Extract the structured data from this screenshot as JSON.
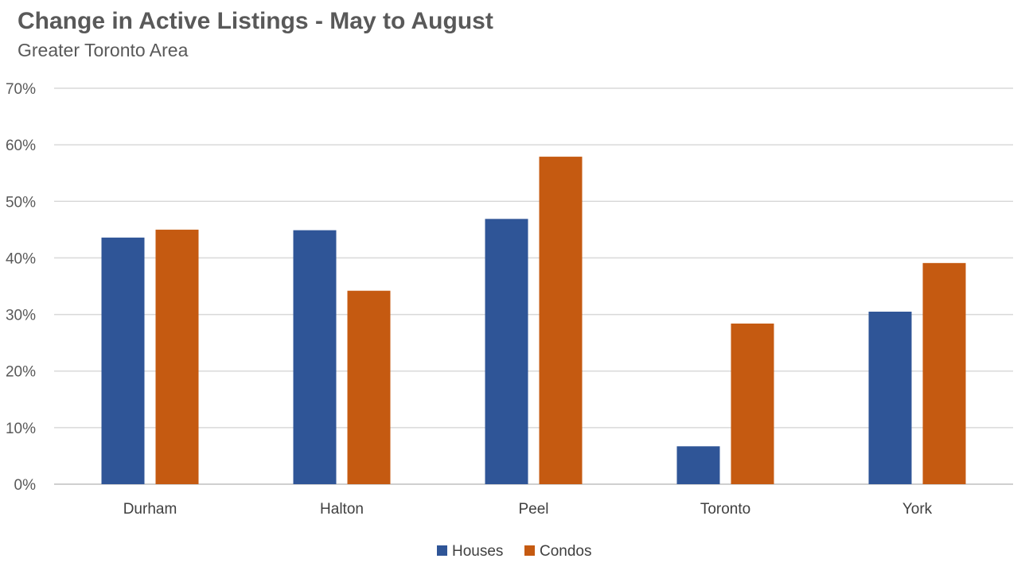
{
  "chart_data": {
    "type": "bar",
    "title": "Change in Active Listings - May to August",
    "subtitle": "Greater Toronto Area",
    "categories": [
      "Durham",
      "Halton",
      "Peel",
      "Toronto",
      "York"
    ],
    "series": [
      {
        "name": "Houses",
        "color": "#2f5597",
        "values": [
          43.6,
          44.9,
          46.9,
          6.7,
          30.5
        ]
      },
      {
        "name": "Condos",
        "color": "#c55a11",
        "values": [
          45.0,
          34.2,
          57.9,
          28.4,
          39.1
        ]
      }
    ],
    "y_ticks": [
      "0%",
      "10%",
      "20%",
      "30%",
      "40%",
      "50%",
      "60%",
      "70%"
    ],
    "ylim": [
      0,
      70
    ],
    "grid": true,
    "legend_position": "bottom"
  }
}
